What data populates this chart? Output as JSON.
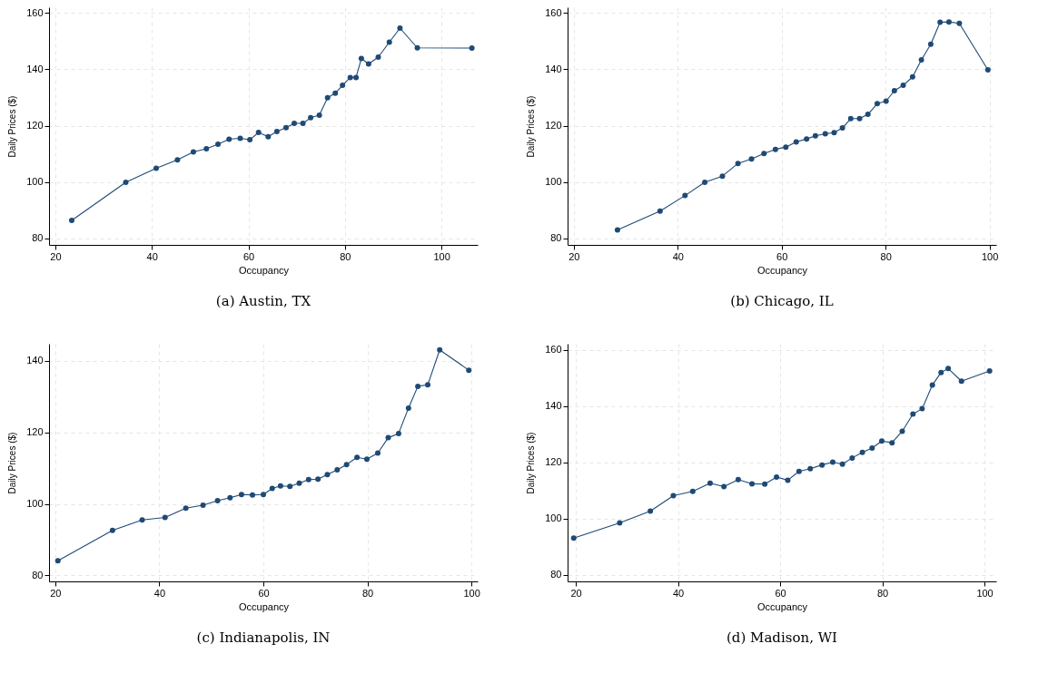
{
  "chart_data": [
    {
      "type": "line",
      "title": "(a) Austin, TX",
      "xlabel": "Occupancy",
      "ylabel": "Daily Prices ($)",
      "xlim": [
        18.7,
        107.5
      ],
      "ylim": [
        77.7,
        162
      ],
      "xticks": [
        20,
        40,
        60,
        80,
        100
      ],
      "yticks": [
        80,
        100,
        120,
        140,
        160
      ],
      "grid": true,
      "marker": "circle",
      "x": [
        23.4,
        34.6,
        40.9,
        45.3,
        48.6,
        51.3,
        53.7,
        56.0,
        58.3,
        60.3,
        62.1,
        64.1,
        65.9,
        67.8,
        69.5,
        71.3,
        72.9,
        74.7,
        76.4,
        78.0,
        79.5,
        81.1,
        82.3,
        83.4,
        84.9,
        86.9,
        89.2,
        91.4,
        95.0,
        106.3
      ],
      "series": [
        {
          "color": "#1f4a75",
          "values": [
            86.4,
            99.9,
            104.9,
            107.9,
            110.7,
            111.8,
            113.4,
            115.2,
            115.5,
            115.0,
            117.6,
            116.1,
            117.9,
            119.3,
            120.8,
            120.8,
            122.8,
            123.7,
            129.9,
            131.5,
            134.3,
            137.1,
            137.1,
            143.8,
            141.9,
            144.3,
            149.6,
            154.6,
            147.6,
            147.5
          ]
        }
      ]
    },
    {
      "type": "line",
      "title": "(b) Chicago, IL",
      "xlabel": "Occupancy",
      "ylabel": "Daily Prices ($)",
      "xlim": [
        18.8,
        101.3
      ],
      "ylim": [
        77.7,
        162
      ],
      "xticks": [
        20,
        40,
        60,
        80,
        100
      ],
      "yticks": [
        80,
        100,
        120,
        140,
        160
      ],
      "grid": true,
      "marker": "circle",
      "x": [
        28.4,
        36.6,
        41.4,
        45.2,
        48.6,
        51.6,
        54.2,
        56.6,
        58.8,
        60.8,
        62.8,
        64.8,
        66.5,
        68.4,
        70.1,
        71.7,
        73.3,
        75.0,
        76.6,
        78.4,
        80.1,
        81.7,
        83.4,
        85.2,
        86.9,
        88.7,
        90.5,
        92.2,
        94.2,
        99.7
      ],
      "series": [
        {
          "color": "#1f4a75",
          "values": [
            83.0,
            89.7,
            95.2,
            99.9,
            102.1,
            106.6,
            108.2,
            110.1,
            111.6,
            112.4,
            114.2,
            115.3,
            116.4,
            117.1,
            117.5,
            119.2,
            122.5,
            122.5,
            124.0,
            127.8,
            128.7,
            132.4,
            134.3,
            137.3,
            143.3,
            148.9,
            156.7,
            156.8,
            156.3,
            139.8
          ]
        }
      ]
    },
    {
      "type": "line",
      "title": "(c) Indianapolis, IN",
      "xlabel": "Occupancy",
      "ylabel": "Daily Prices ($)",
      "xlim": [
        18.8,
        101.2
      ],
      "ylim": [
        78.3,
        144.8
      ],
      "xticks": [
        20,
        40,
        60,
        80,
        100
      ],
      "yticks": [
        80,
        100,
        120,
        140
      ],
      "grid": true,
      "marker": "circle",
      "x": [
        20.5,
        31.0,
        36.7,
        41.1,
        45.1,
        48.4,
        51.2,
        53.6,
        55.8,
        57.9,
        60.0,
        61.7,
        63.3,
        65.1,
        66.9,
        68.7,
        70.5,
        72.3,
        74.2,
        76.0,
        78.0,
        79.9,
        82.0,
        84.0,
        86.0,
        87.9,
        89.7,
        91.6,
        93.9,
        99.5
      ],
      "series": [
        {
          "color": "#1f4a75",
          "values": [
            84.1,
            92.6,
            95.5,
            96.2,
            98.8,
            99.6,
            100.9,
            101.7,
            102.6,
            102.5,
            102.6,
            104.3,
            105.0,
            104.9,
            105.8,
            106.8,
            106.9,
            108.2,
            109.5,
            111.0,
            113.0,
            112.5,
            114.2,
            118.5,
            119.7,
            126.8,
            132.9,
            133.3,
            143.1,
            137.4
          ]
        }
      ]
    },
    {
      "type": "line",
      "title": "(d) Madison, WI",
      "xlabel": "Occupancy",
      "ylabel": "Daily Prices ($)",
      "xlim": [
        18.4,
        102.3
      ],
      "ylim": [
        77.7,
        162.2
      ],
      "xticks": [
        20,
        40,
        60,
        80,
        100
      ],
      "yticks": [
        80,
        100,
        120,
        140,
        160
      ],
      "grid": true,
      "marker": "circle",
      "x": [
        19.6,
        28.6,
        34.6,
        39.1,
        42.9,
        46.3,
        49.0,
        51.8,
        54.5,
        57.0,
        59.3,
        61.5,
        63.7,
        65.9,
        68.2,
        70.3,
        72.2,
        74.1,
        76.1,
        78.0,
        79.9,
        81.9,
        83.9,
        86.0,
        87.8,
        89.8,
        91.5,
        92.9,
        95.5,
        101.0
      ],
      "series": [
        {
          "color": "#1f4a75",
          "values": [
            93.1,
            98.5,
            102.7,
            108.2,
            109.7,
            112.6,
            111.4,
            113.9,
            112.4,
            112.3,
            114.8,
            113.7,
            116.8,
            117.8,
            119.1,
            120.1,
            119.4,
            121.6,
            123.6,
            125.1,
            127.6,
            127.0,
            131.1,
            137.2,
            139.1,
            147.5,
            152.0,
            153.4,
            148.9,
            152.5
          ]
        }
      ]
    }
  ]
}
